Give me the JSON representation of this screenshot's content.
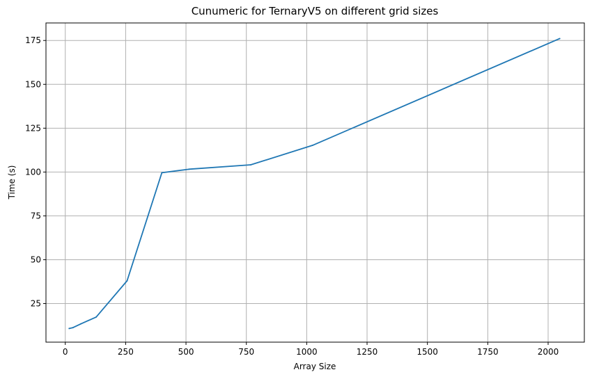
{
  "chart_data": {
    "type": "line",
    "title": "Cunumeric for TernaryV5 on different grid sizes",
    "xlabel": "Array Size",
    "ylabel": "Time (s)",
    "xlim": [
      -80,
      2150
    ],
    "ylim": [
      3,
      185
    ],
    "xticks": [
      0,
      250,
      500,
      750,
      1000,
      1250,
      1500,
      1750,
      2000
    ],
    "yticks": [
      25,
      50,
      75,
      100,
      125,
      150,
      175
    ],
    "grid": true,
    "series": [
      {
        "color": "#1f77b4",
        "x": [
          16,
          32,
          64,
          128,
          256,
          400,
          512,
          768,
          1024,
          2048
        ],
        "y": [
          10.8,
          11.3,
          13.4,
          17.3,
          38.0,
          99.6,
          101.6,
          104.1,
          115.2,
          176.1
        ]
      }
    ]
  }
}
